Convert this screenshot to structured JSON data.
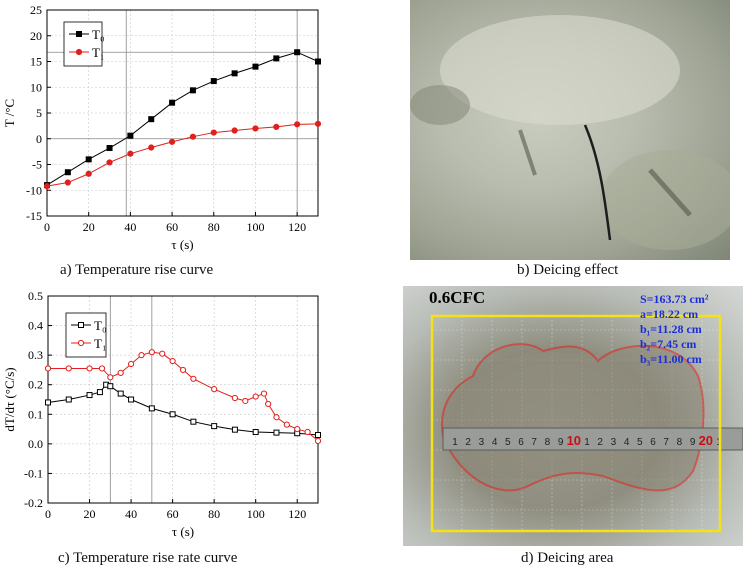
{
  "panels": {
    "a": {
      "caption": "a) Temperature rise curve"
    },
    "b": {
      "caption": "b) Deicing effect"
    },
    "c": {
      "caption": "c) Temperature rise rate curve"
    },
    "d": {
      "caption": "d) Deicing area",
      "sample_label": "0.6CFC",
      "measurements": [
        "S=163.73 cm²",
        "a=18.22 cm",
        "b₁=11.28 cm",
        "b₂=7.45 cm",
        "b₃=11.00 cm"
      ],
      "ruler_labels": [
        "1",
        "2",
        "3",
        "4",
        "5",
        "6",
        "7",
        "8",
        "9",
        "10",
        "1",
        "2",
        "3",
        "4",
        "5",
        "6",
        "7",
        "8",
        "9",
        "20",
        "1"
      ]
    }
  },
  "chart_data": [
    {
      "type": "line",
      "title": "",
      "xlabel": "τ (s)",
      "ylabel": "T /°C",
      "xlim": [
        0,
        130
      ],
      "ylim": [
        -15,
        25
      ],
      "xticks": [
        0,
        20,
        40,
        60,
        80,
        100,
        120
      ],
      "yticks": [
        -15,
        -10,
        -5,
        0,
        5,
        10,
        15,
        20,
        25
      ],
      "legend_position": "top-left",
      "series": [
        {
          "name": "T₀",
          "color": "#000000",
          "marker": "square-filled",
          "x": [
            0,
            10,
            20,
            30,
            40,
            50,
            60,
            70,
            80,
            90,
            100,
            110,
            120,
            130
          ],
          "y": [
            -9,
            -6.5,
            -4,
            -1.8,
            0.6,
            3.8,
            7,
            9.4,
            11.2,
            12.7,
            14,
            15.6,
            16.8,
            15
          ]
        },
        {
          "name": "T₁",
          "color": "#e0201c",
          "marker": "circle-filled",
          "x": [
            0,
            10,
            20,
            30,
            40,
            50,
            60,
            70,
            80,
            90,
            100,
            110,
            120,
            130
          ],
          "y": [
            -9.2,
            -8.5,
            -6.8,
            -4.6,
            -2.9,
            -1.7,
            -0.6,
            0.4,
            1.2,
            1.6,
            2,
            2.3,
            2.8,
            2.9
          ]
        }
      ],
      "reference_lines": [
        {
          "axis": "x",
          "value": 38
        },
        {
          "axis": "x",
          "value": 120
        },
        {
          "axis": "y",
          "value": 0
        },
        {
          "axis": "y",
          "value": 16.8
        }
      ]
    },
    {
      "type": "line",
      "title": "",
      "xlabel": "τ (s)",
      "ylabel": "dT/dτ  (°C/s)",
      "xlim": [
        0,
        130
      ],
      "ylim": [
        -0.2,
        0.5
      ],
      "xticks": [
        0,
        20,
        40,
        60,
        80,
        100,
        120
      ],
      "yticks": [
        -0.2,
        -0.1,
        0.0,
        0.1,
        0.2,
        0.3,
        0.4,
        0.5
      ],
      "ytick_labels": [
        "-0.2",
        "-0.1",
        "0.0",
        "0.1",
        "0.2",
        "0.3",
        "0.4",
        "0.5"
      ],
      "legend_position": "top-center",
      "series": [
        {
          "name": "T₀",
          "color": "#000000",
          "marker": "square-open",
          "x": [
            0,
            10,
            20,
            25,
            28,
            30,
            35,
            40,
            50,
            60,
            70,
            80,
            90,
            100,
            110,
            120,
            130
          ],
          "y": [
            0.14,
            0.15,
            0.165,
            0.175,
            0.2,
            0.195,
            0.17,
            0.15,
            0.12,
            0.1,
            0.075,
            0.06,
            0.048,
            0.04,
            0.038,
            0.036,
            0.03
          ]
        },
        {
          "name": "T₁",
          "color": "#e0201c",
          "marker": "circle-open",
          "x": [
            0,
            10,
            20,
            26,
            30,
            35,
            40,
            45,
            50,
            55,
            60,
            65,
            70,
            80,
            90,
            95,
            100,
            104,
            106,
            110,
            115,
            120,
            125,
            130
          ],
          "y": [
            0.255,
            0.255,
            0.255,
            0.255,
            0.225,
            0.24,
            0.27,
            0.3,
            0.31,
            0.305,
            0.28,
            0.25,
            0.22,
            0.185,
            0.155,
            0.145,
            0.16,
            0.17,
            0.135,
            0.09,
            0.065,
            0.05,
            0.04,
            0.01
          ]
        }
      ],
      "reference_lines": [
        {
          "axis": "x",
          "value": 30
        },
        {
          "axis": "x",
          "value": 50
        }
      ]
    }
  ]
}
